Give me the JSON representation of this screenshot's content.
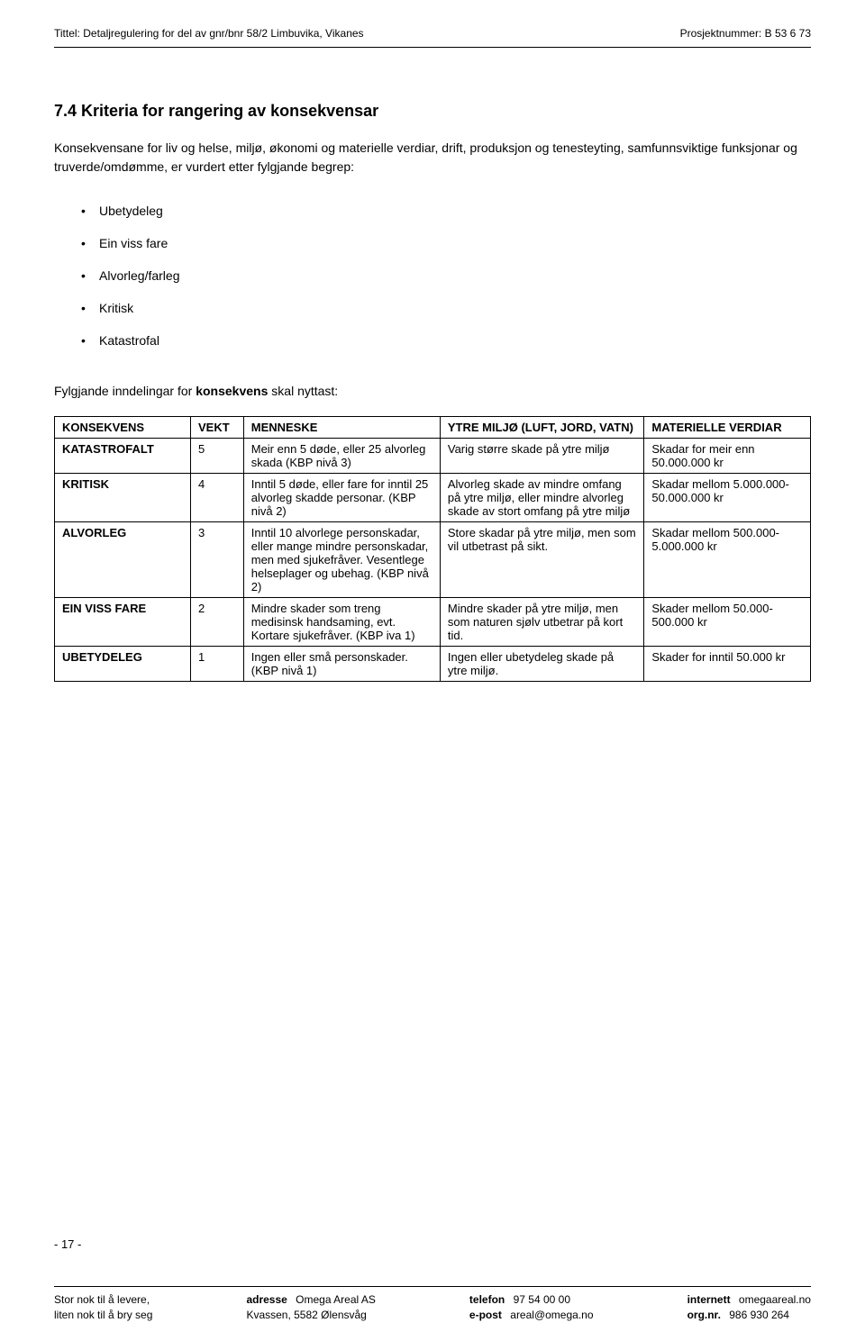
{
  "header": {
    "title_label": "Tittel:",
    "title": "Detaljregulering for del av gnr/bnr 58/2 Limbuvika, Vikanes",
    "project_label": "Prosjektnummer:",
    "project_number": "B 53 6 73"
  },
  "section": {
    "heading": "7.4 Kriteria for rangering av konsekvensar",
    "intro": "Konsekvensane for liv og helse, miljø, økonomi og materielle verdiar, drift, produksjon og tenesteyting, samfunnsviktige funksjonar og truverde/omdømme, er vurdert etter fylgjande begrep:",
    "bullets": [
      "Ubetydeleg",
      "Ein viss fare",
      "Alvorleg/farleg",
      "Kritisk",
      "Katastrofal"
    ],
    "sub_intro_1": "Fylgjande inndelingar for ",
    "sub_intro_bold": "konsekvens",
    "sub_intro_2": " skal nyttast:"
  },
  "table": {
    "headers": {
      "konsekvens": "KONSEKVENS",
      "vekt": "VEKT",
      "menneske": "MENNESKE",
      "miljo": "YTRE MILJØ (LUFT, JORD, VATN)",
      "materielle": "MATERIELLE VERDIAR"
    },
    "rows": [
      {
        "konsekvens": "KATASTROFALT",
        "vekt": "5",
        "menneske": "Meir enn 5 døde, eller 25 alvorleg skada (KBP nivå 3)",
        "miljo": "Varig større skade på ytre miljø",
        "materielle": "Skadar for meir enn 50.000.000 kr"
      },
      {
        "konsekvens": "KRITISK",
        "vekt": "4",
        "menneske": "Inntil 5 døde, eller fare for inntil 25 alvorleg skadde personar. (KBP nivå 2)",
        "miljo": "Alvorleg skade av mindre omfang på ytre miljø, eller mindre alvorleg skade av stort omfang på ytre miljø",
        "materielle": "Skadar mellom 5.000.000-50.000.000 kr"
      },
      {
        "konsekvens": "ALVORLEG",
        "vekt": "3",
        "menneske": "Inntil 10 alvorlege personskadar, eller mange mindre personskadar, men med sjukefråver. Vesentlege helseplager og ubehag. (KBP nivå 2)",
        "miljo": "Store skadar på ytre miljø, men som vil utbetrast på sikt.",
        "materielle": "Skadar mellom 500.000-5.000.000 kr"
      },
      {
        "konsekvens": "EIN VISS FARE",
        "vekt": "2",
        "menneske": "Mindre skader som treng medisinsk handsaming, evt. Kortare sjukefråver. (KBP iva 1)",
        "miljo": "Mindre skader på ytre miljø, men som naturen sjølv utbetrar på kort tid.",
        "materielle": "Skader mellom 50.000-500.000 kr"
      },
      {
        "konsekvens": "UBETYDELEG",
        "vekt": "1",
        "menneske": "Ingen eller små personskader. (KBP nivå 1)",
        "miljo": "Ingen eller ubetydeleg skade på ytre miljø.",
        "materielle": "Skader for inntil 50.000 kr"
      }
    ]
  },
  "page_number": "- 17 -",
  "footer": {
    "slogan1": "Stor nok til å levere,",
    "slogan2": "liten nok til å bry seg",
    "address_label": "adresse",
    "address1": "Omega Areal AS",
    "address2": "Kvassen, 5582 Ølensvåg",
    "phone_label": "telefon",
    "phone": "97 54 00 00",
    "email_label": "e-post",
    "email": "areal@omega.no",
    "web_label": "internett",
    "web": "omegaareal.no",
    "org_label": "org.nr.",
    "org": "986 930 264"
  }
}
